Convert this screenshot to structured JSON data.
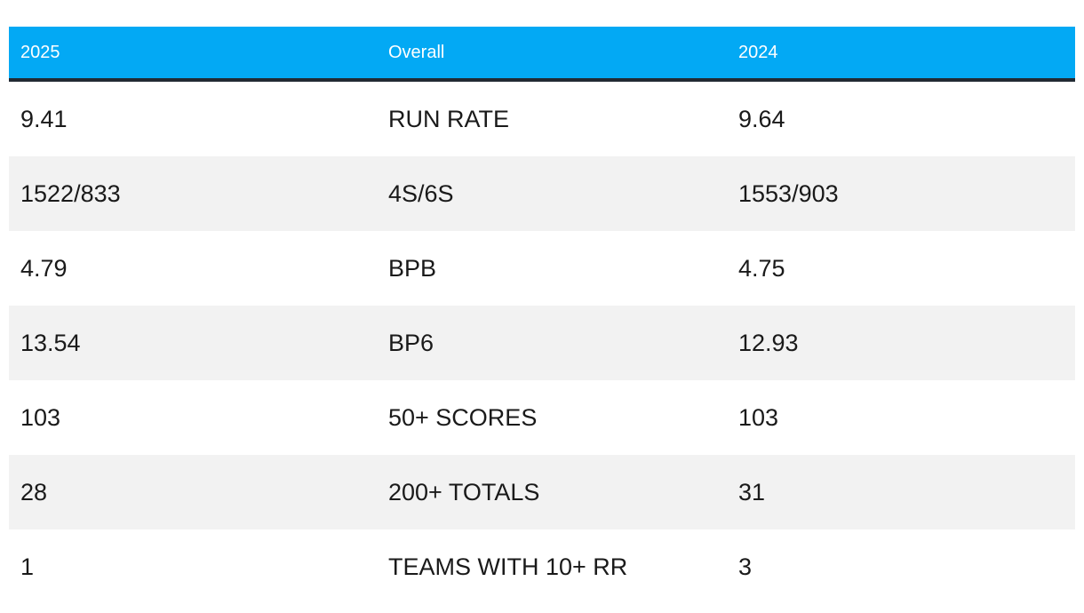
{
  "header": {
    "col1": "2025",
    "col2": "Overall",
    "col3": "2024"
  },
  "rows": [
    {
      "y2025": "9.41",
      "stat": "RUN RATE",
      "y2024": "9.64"
    },
    {
      "y2025": "1522/833",
      "stat": "4S/6S",
      "y2024": "1553/903"
    },
    {
      "y2025": "4.79",
      "stat": "BPB",
      "y2024": "4.75"
    },
    {
      "y2025": "13.54",
      "stat": "BP6",
      "y2024": "12.93"
    },
    {
      "y2025": "103",
      "stat": "50+ SCORES",
      "y2024": "103"
    },
    {
      "y2025": "28",
      "stat": "200+ TOTALS",
      "y2024": "31"
    },
    {
      "y2025": "1",
      "stat": "TEAMS WITH 10+ RR",
      "y2024": "3"
    }
  ],
  "colors": {
    "header_bg": "#03a9f4",
    "header_border": "#222a33",
    "alt_row_bg": "#f2f2f2"
  }
}
